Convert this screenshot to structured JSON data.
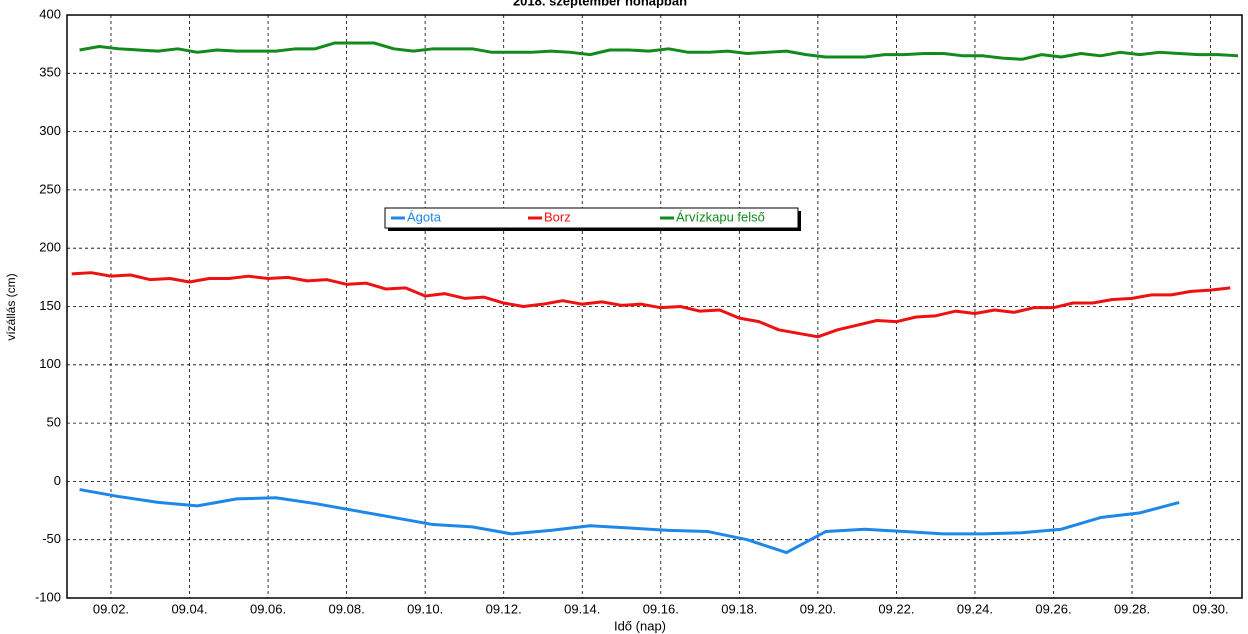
{
  "chart_data": {
    "type": "line",
    "title": "2018. szeptember hónapban",
    "x_label": "Idő (nap)",
    "y_label": "vízállás (cm)",
    "xlim": [
      0.88,
      30.8
    ],
    "ylim": [
      -100,
      400
    ],
    "yticks": [
      -100,
      -50,
      0,
      50,
      100,
      150,
      200,
      250,
      300,
      350,
      400
    ],
    "xticks": [
      {
        "value": 2,
        "label": "09.02."
      },
      {
        "value": 4,
        "label": "09.04."
      },
      {
        "value": 6,
        "label": "09.06."
      },
      {
        "value": 8,
        "label": "09.08."
      },
      {
        "value": 10,
        "label": "09.10."
      },
      {
        "value": 12,
        "label": "09.12."
      },
      {
        "value": 14,
        "label": "09.14."
      },
      {
        "value": 16,
        "label": "09.16."
      },
      {
        "value": 18,
        "label": "09.18."
      },
      {
        "value": 20,
        "label": "09.20."
      },
      {
        "value": 22,
        "label": "09.22."
      },
      {
        "value": 24,
        "label": "09.24."
      },
      {
        "value": 26,
        "label": "09.26."
      },
      {
        "value": 28,
        "label": "09.28."
      },
      {
        "value": 30,
        "label": "09.30."
      }
    ],
    "grid": true,
    "legend": "center",
    "series": [
      {
        "name": "Ágota",
        "color": "#1f87e8",
        "x": [
          1.2,
          2.2,
          3.2,
          4.2,
          5.2,
          6.2,
          7.2,
          8.2,
          9.2,
          10.2,
          11.2,
          12.2,
          13.2,
          14.2,
          15.2,
          16.2,
          17.2,
          18.2,
          19.2,
          20.2,
          21.2,
          22.2,
          23.2,
          24.2,
          25.2,
          26.2,
          27.2,
          28.2,
          29.2
        ],
        "values": [
          -7,
          -13,
          -18,
          -21,
          -15,
          -14,
          -19,
          -25,
          -31,
          -37,
          -39,
          -45,
          -42,
          -38,
          -40,
          -42,
          -43,
          -50,
          -61,
          -43,
          -41,
          -43,
          -45,
          -45,
          -44,
          -41,
          -31,
          -27,
          -18
        ]
      },
      {
        "name": "Borz",
        "color": "#ee1111",
        "x": [
          1.0,
          1.5,
          2.0,
          2.5,
          3.0,
          3.5,
          4.0,
          4.5,
          5.0,
          5.5,
          6.0,
          6.5,
          7.0,
          7.5,
          8.0,
          8.5,
          9.0,
          9.5,
          10.0,
          10.5,
          11.0,
          11.5,
          12.0,
          12.5,
          13.0,
          13.5,
          14.0,
          14.5,
          15.0,
          15.5,
          16.0,
          16.5,
          17.0,
          17.5,
          18.0,
          18.5,
          19.0,
          19.5,
          20.0,
          20.5,
          21.0,
          21.5,
          22.0,
          22.5,
          23.0,
          23.5,
          24.0,
          24.5,
          25.0,
          25.5,
          26.0,
          26.5,
          27.0,
          27.5,
          28.0,
          28.5,
          29.0,
          29.5,
          30.0,
          30.5
        ],
        "values": [
          178,
          179,
          176,
          177,
          173,
          174,
          171,
          174,
          174,
          176,
          174,
          175,
          172,
          173,
          169,
          170,
          165,
          166,
          159,
          161,
          157,
          158,
          153,
          150,
          152,
          155,
          152,
          154,
          151,
          152,
          149,
          150,
          146,
          147,
          140,
          137,
          130,
          127,
          124,
          130,
          134,
          138,
          137,
          141,
          142,
          146,
          144,
          147,
          145,
          149,
          149,
          153,
          153,
          156,
          157,
          160,
          160,
          163,
          164,
          166
        ]
      },
      {
        "name": "Árvízkapu felső",
        "color": "#138a1c",
        "x": [
          1.2,
          1.7,
          2.2,
          2.7,
          3.2,
          3.7,
          4.2,
          4.7,
          5.2,
          5.7,
          6.2,
          6.7,
          7.2,
          7.7,
          8.2,
          8.7,
          9.2,
          9.7,
          10.2,
          10.7,
          11.2,
          11.7,
          12.2,
          12.7,
          13.2,
          13.7,
          14.2,
          14.7,
          15.2,
          15.7,
          16.2,
          16.7,
          17.2,
          17.7,
          18.2,
          18.7,
          19.2,
          19.7,
          20.2,
          20.7,
          21.2,
          21.7,
          22.2,
          22.7,
          23.2,
          23.7,
          24.2,
          24.7,
          25.2,
          25.7,
          26.2,
          26.7,
          27.2,
          27.7,
          28.2,
          28.7,
          29.2,
          29.7,
          30.2,
          30.7
        ],
        "values": [
          370,
          373,
          371,
          370,
          369,
          371,
          368,
          370,
          369,
          369,
          369,
          371,
          371,
          376,
          376,
          376,
          371,
          369,
          371,
          371,
          371,
          368,
          368,
          368,
          369,
          368,
          366,
          370,
          370,
          369,
          371,
          368,
          368,
          369,
          367,
          368,
          369,
          366,
          364,
          364,
          364,
          366,
          366,
          367,
          367,
          365,
          365,
          363,
          362,
          366,
          364,
          367,
          365,
          368,
          366,
          368,
          367,
          366,
          366,
          365
        ]
      }
    ]
  }
}
